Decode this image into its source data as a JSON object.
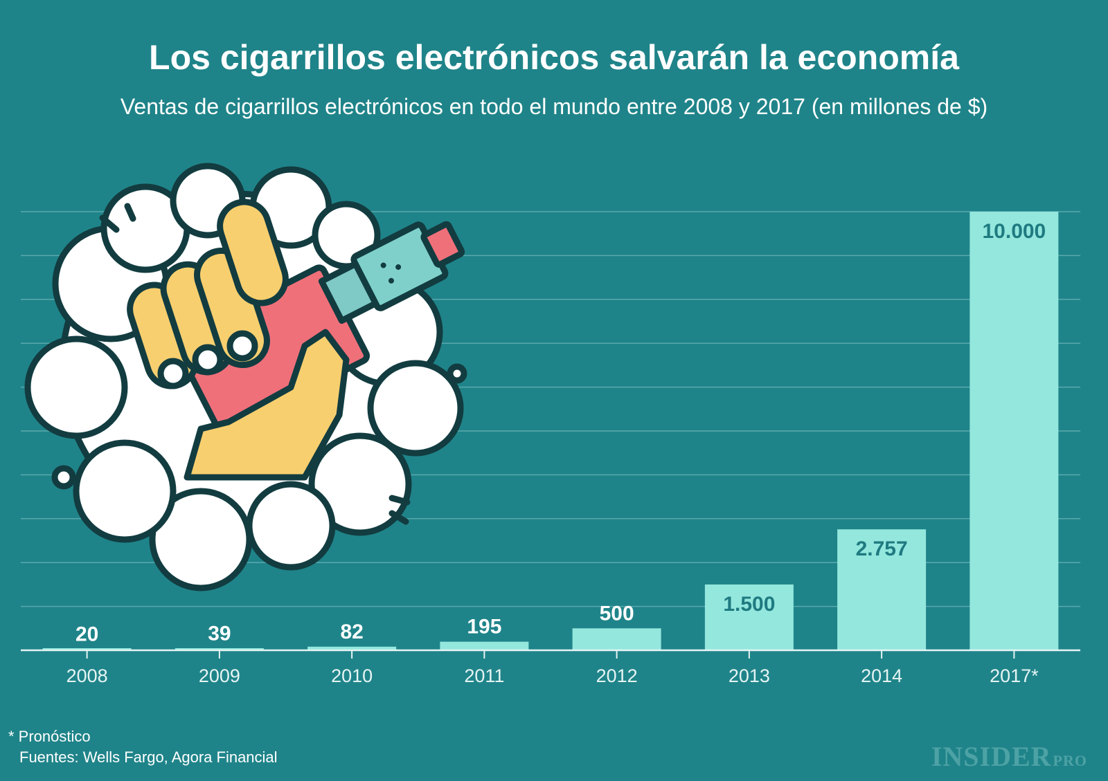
{
  "header": {
    "title": "Los cigarrillos electrónicos salvarán la economía",
    "subtitle": "Ventas de cigarrillos electrónicos en todo el mundo entre 2008 y 2017 (en millones de $)"
  },
  "footer": {
    "note": "* Pronóstico",
    "sources": "Fuentes: Wells Fargo, Agora Financial",
    "brand_main": "INSIDER",
    "brand_sub": "PRO"
  },
  "colors": {
    "background": "#1f8489",
    "bar": "#93e7dd",
    "grid": "#5aa9ad",
    "axis": "#e6f4f4",
    "label_on_bar": "#1f7a80"
  },
  "chart_data": {
    "type": "bar",
    "title": "Los cigarrillos electrónicos salvarán la economía",
    "subtitle": "Ventas de cigarrillos electrónicos en todo el mundo entre 2008 y 2017 (en millones de $)",
    "categories": [
      "2008",
      "2009",
      "2010",
      "2011",
      "2012",
      "2013",
      "2014",
      "2017*"
    ],
    "values": [
      20,
      39,
      82,
      195,
      500,
      1500,
      2757,
      10000
    ],
    "value_labels": [
      "20",
      "39",
      "82",
      "195",
      "500",
      "1.500",
      "2.757",
      "10.000"
    ],
    "xlabel": "",
    "ylabel": "",
    "ylim": [
      0,
      10000
    ],
    "grid": true,
    "gridline_count": 10,
    "legend": "none"
  },
  "illustration": {
    "name": "hand-holding-vape-icon"
  }
}
